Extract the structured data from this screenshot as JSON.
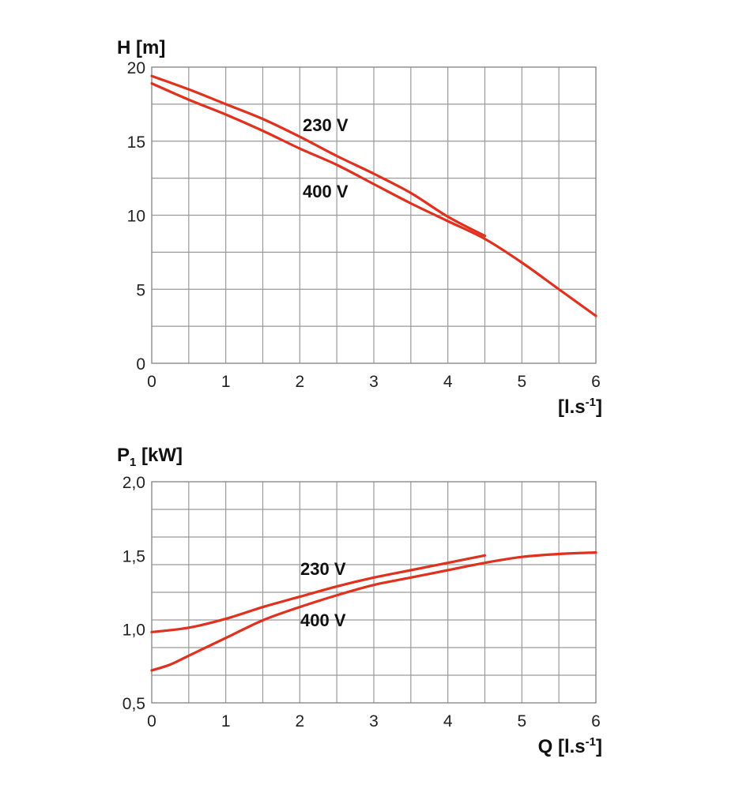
{
  "chart_data": [
    {
      "type": "line",
      "title": "",
      "ylabel": "H [m]",
      "xlabel": "[l.s-1]",
      "xlim": [
        0,
        6
      ],
      "ylim": [
        0,
        20
      ],
      "x_ticks": [
        "0",
        "1",
        "2",
        "3",
        "4",
        "5",
        "6"
      ],
      "y_ticks": [
        "0",
        "5",
        "10",
        "15",
        "20"
      ],
      "grid": true,
      "series": [
        {
          "name": "230 V",
          "color": "#e0301e",
          "x": [
            0,
            0.5,
            1,
            1.5,
            2,
            2.5,
            3,
            3.5,
            4,
            4.5
          ],
          "y": [
            19.4,
            18.5,
            17.5,
            16.5,
            15.3,
            14.0,
            12.8,
            11.5,
            9.9,
            8.6
          ]
        },
        {
          "name": "400 V",
          "color": "#e0301e",
          "x": [
            0,
            0.5,
            1,
            1.5,
            2,
            2.5,
            3,
            3.5,
            4,
            4.5,
            5,
            5.5,
            6
          ],
          "y": [
            18.9,
            17.8,
            16.8,
            15.7,
            14.5,
            13.4,
            12.1,
            10.8,
            9.6,
            8.4,
            6.8,
            5.0,
            3.2
          ]
        }
      ]
    },
    {
      "type": "line",
      "title": "",
      "ylabel": "P1 [kW]",
      "xlabel": "Q [l.s-1]",
      "xlim": [
        0,
        6
      ],
      "ylim": [
        0.5,
        2.0
      ],
      "x_ticks": [
        "0",
        "1",
        "2",
        "3",
        "4",
        "5",
        "6"
      ],
      "y_ticks": [
        "0,5",
        "1,0",
        "1,5",
        "2,0"
      ],
      "grid": true,
      "series": [
        {
          "name": "230 V",
          "color": "#e0301e",
          "x": [
            0,
            0.5,
            1,
            1.5,
            2,
            2.5,
            3,
            3.5,
            4,
            4.5
          ],
          "y": [
            0.98,
            1.01,
            1.07,
            1.15,
            1.22,
            1.29,
            1.35,
            1.4,
            1.45,
            1.5
          ]
        },
        {
          "name": "400 V",
          "color": "#e0301e",
          "x": [
            0,
            0.25,
            0.5,
            1,
            1.5,
            2,
            2.5,
            3,
            3.5,
            4,
            4.5,
            5,
            5.5,
            6
          ],
          "y": [
            0.72,
            0.76,
            0.82,
            0.94,
            1.06,
            1.15,
            1.23,
            1.3,
            1.35,
            1.4,
            1.45,
            1.49,
            1.51,
            1.52
          ]
        }
      ]
    }
  ]
}
